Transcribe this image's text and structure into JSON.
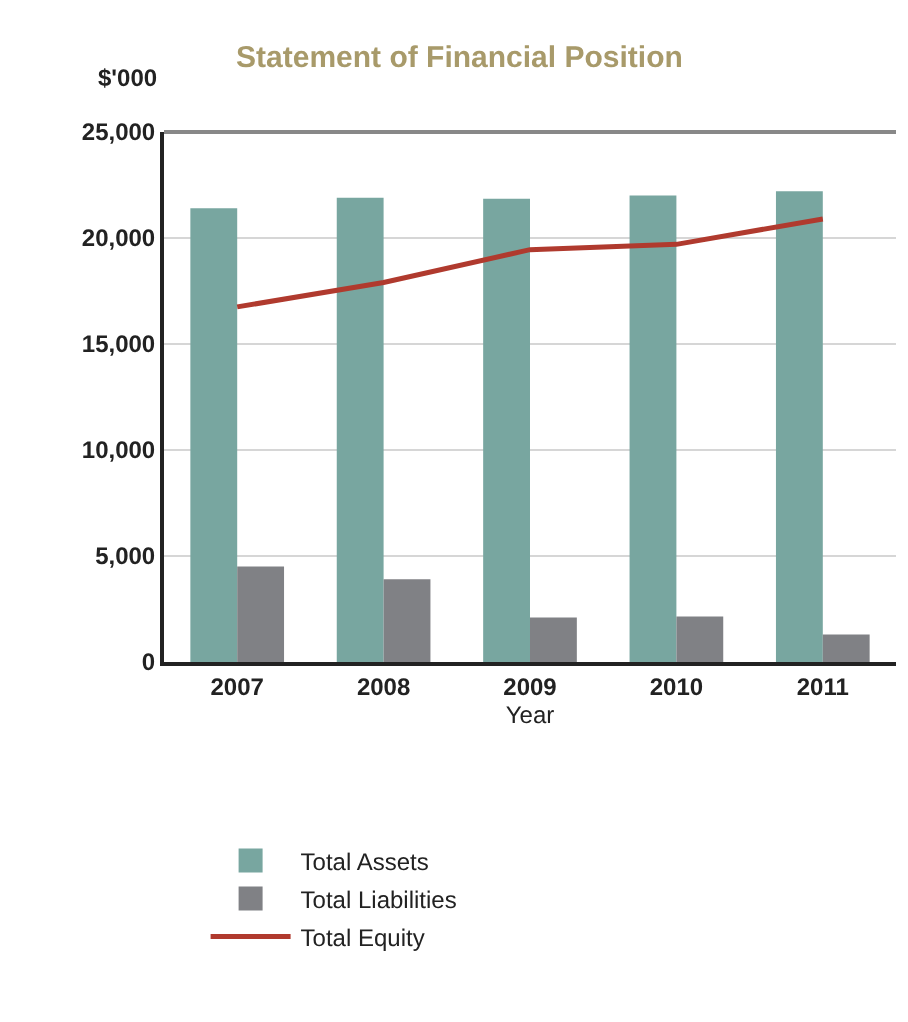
{
  "chart_data": {
    "type": "bar",
    "title": "Statement of Financial Position",
    "ylabel": "$'000",
    "xlabel": "Year",
    "categories": [
      "2007",
      "2008",
      "2009",
      "2010",
      "2011"
    ],
    "series": [
      {
        "name": "Total Assets",
        "color": "#78a6a0",
        "values": [
          21400,
          21900,
          21850,
          22000,
          22200
        ]
      },
      {
        "name": "Total Liabilities",
        "color": "#808185",
        "values": [
          4500,
          3900,
          2100,
          2150,
          1300
        ]
      },
      {
        "name": "Total Equity",
        "type": "line",
        "color": "#b03a2e",
        "values": [
          16750,
          17900,
          19450,
          19700,
          20900
        ]
      }
    ],
    "ylim": [
      0,
      25000
    ],
    "yticks": [
      {
        "value": 0,
        "label": "0"
      },
      {
        "value": 5000,
        "label": "5,000"
      },
      {
        "value": 10000,
        "label": "10,000"
      },
      {
        "value": 15000,
        "label": "15,000"
      },
      {
        "value": 20000,
        "label": "20,000"
      },
      {
        "value": 25000,
        "label": "25,000"
      }
    ],
    "grid": "y",
    "legend": "bottom",
    "marker": "none"
  }
}
